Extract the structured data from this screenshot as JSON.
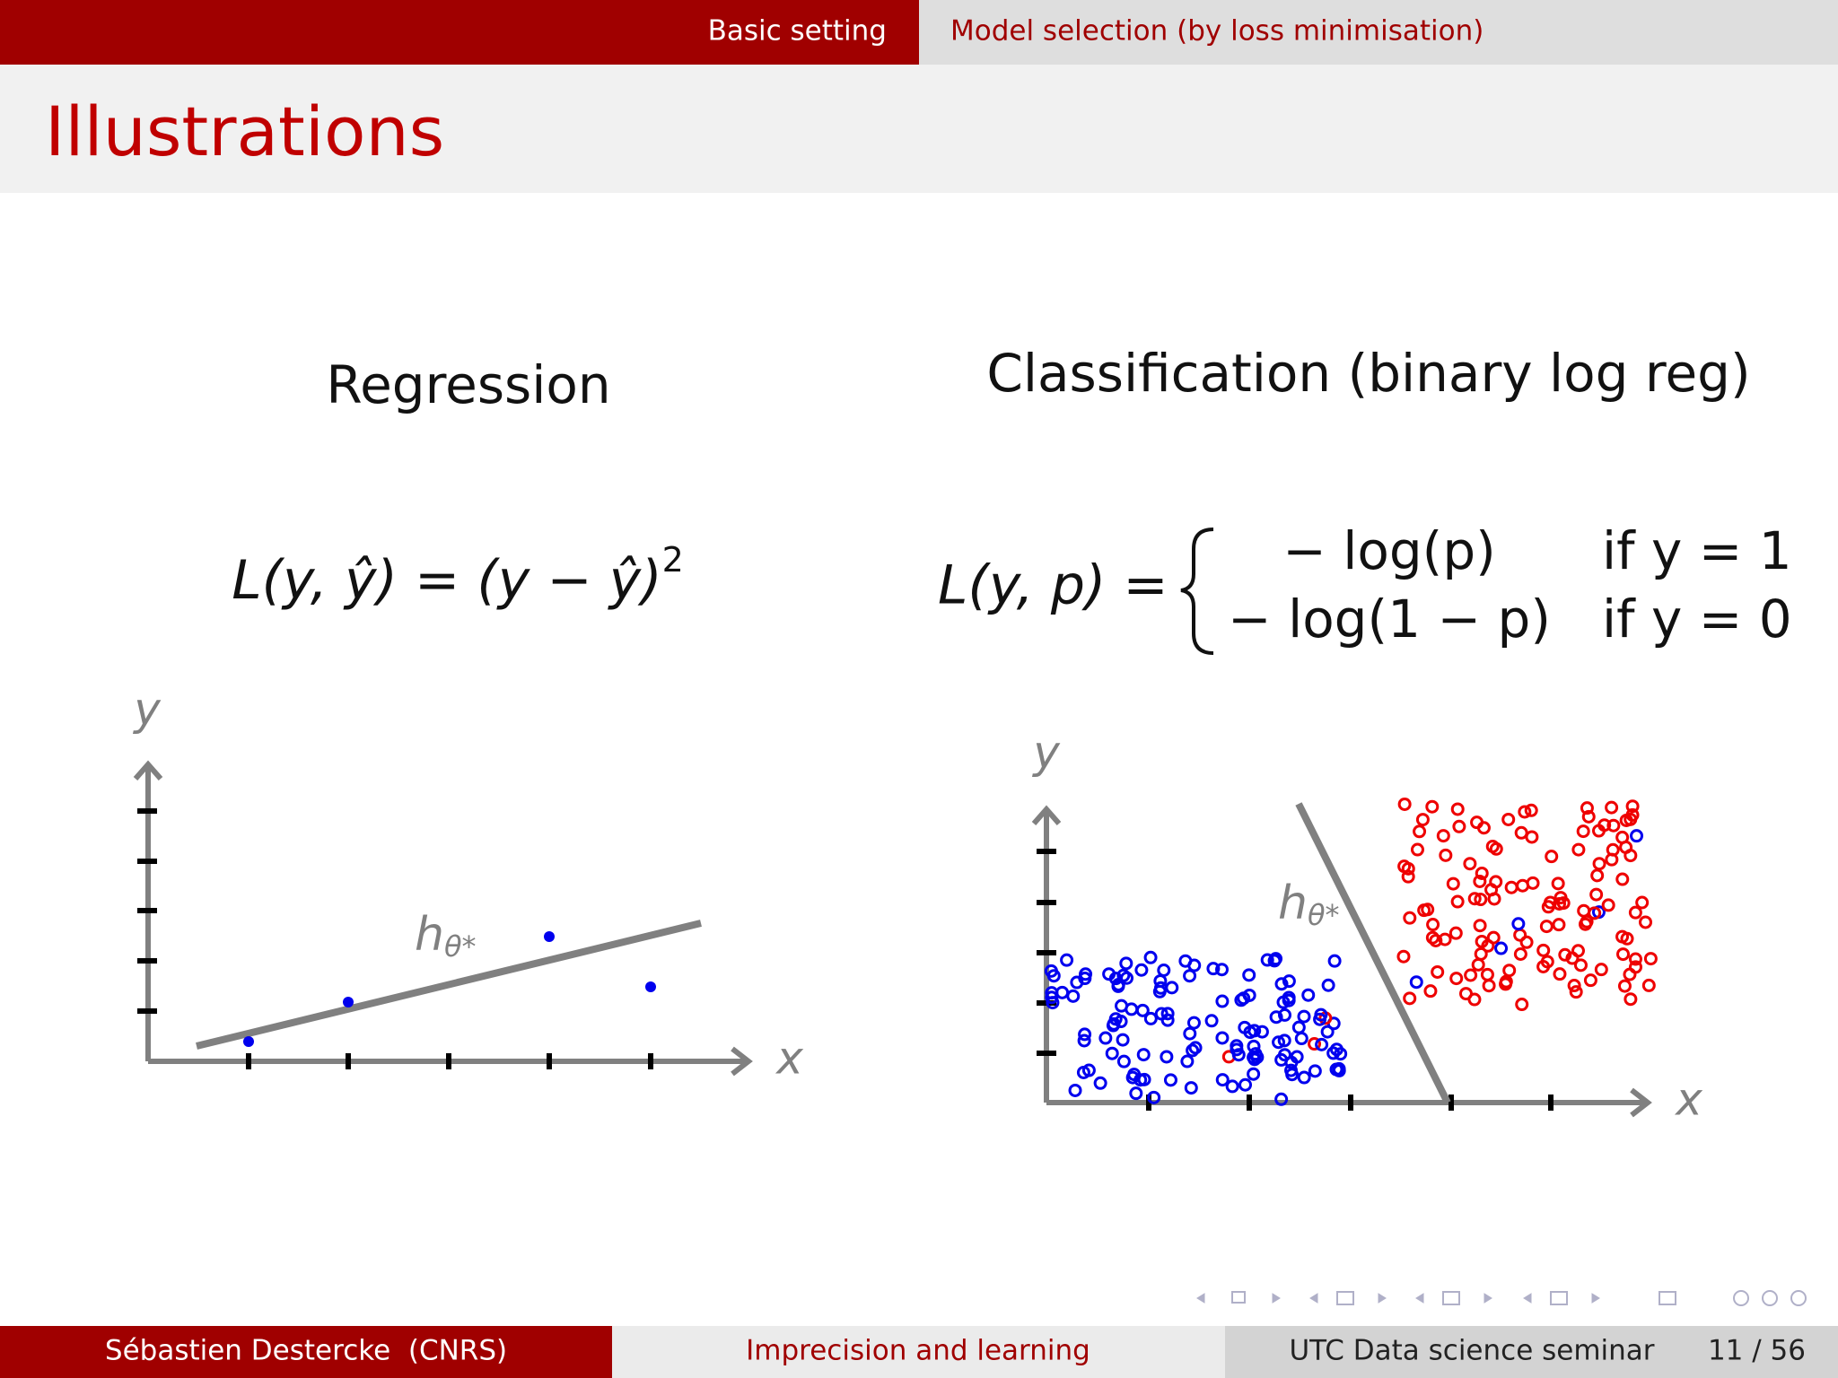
{
  "header": {
    "nav": [
      "Basic setting",
      "Model selection (by loss minimisation)"
    ],
    "title": "Illustrations"
  },
  "regression": {
    "heading": "Regression",
    "formula": {
      "lhs": "L(y, ŷ) = (y − ŷ)",
      "exp": "2"
    },
    "axis_y": "y",
    "axis_x": "x",
    "model": {
      "base": "h",
      "sub": "θ*"
    }
  },
  "classification": {
    "heading": "Classification (binary log reg)",
    "formula": {
      "lhs": "L(y, p) =",
      "cases": [
        {
          "expr": "− log(p)",
          "cond": "if y = 1"
        },
        {
          "expr": "− log(1 − p)",
          "cond": "if y = 0"
        }
      ]
    },
    "axis_y": "y",
    "axis_x": "x",
    "model": {
      "base": "h",
      "sub": "θ*"
    }
  },
  "footer": {
    "author": "Sébastien Destercke  (CNRS)",
    "talk": "Imprecision and learning",
    "event": "UTC Data science seminar",
    "page": "11 / 56"
  }
}
